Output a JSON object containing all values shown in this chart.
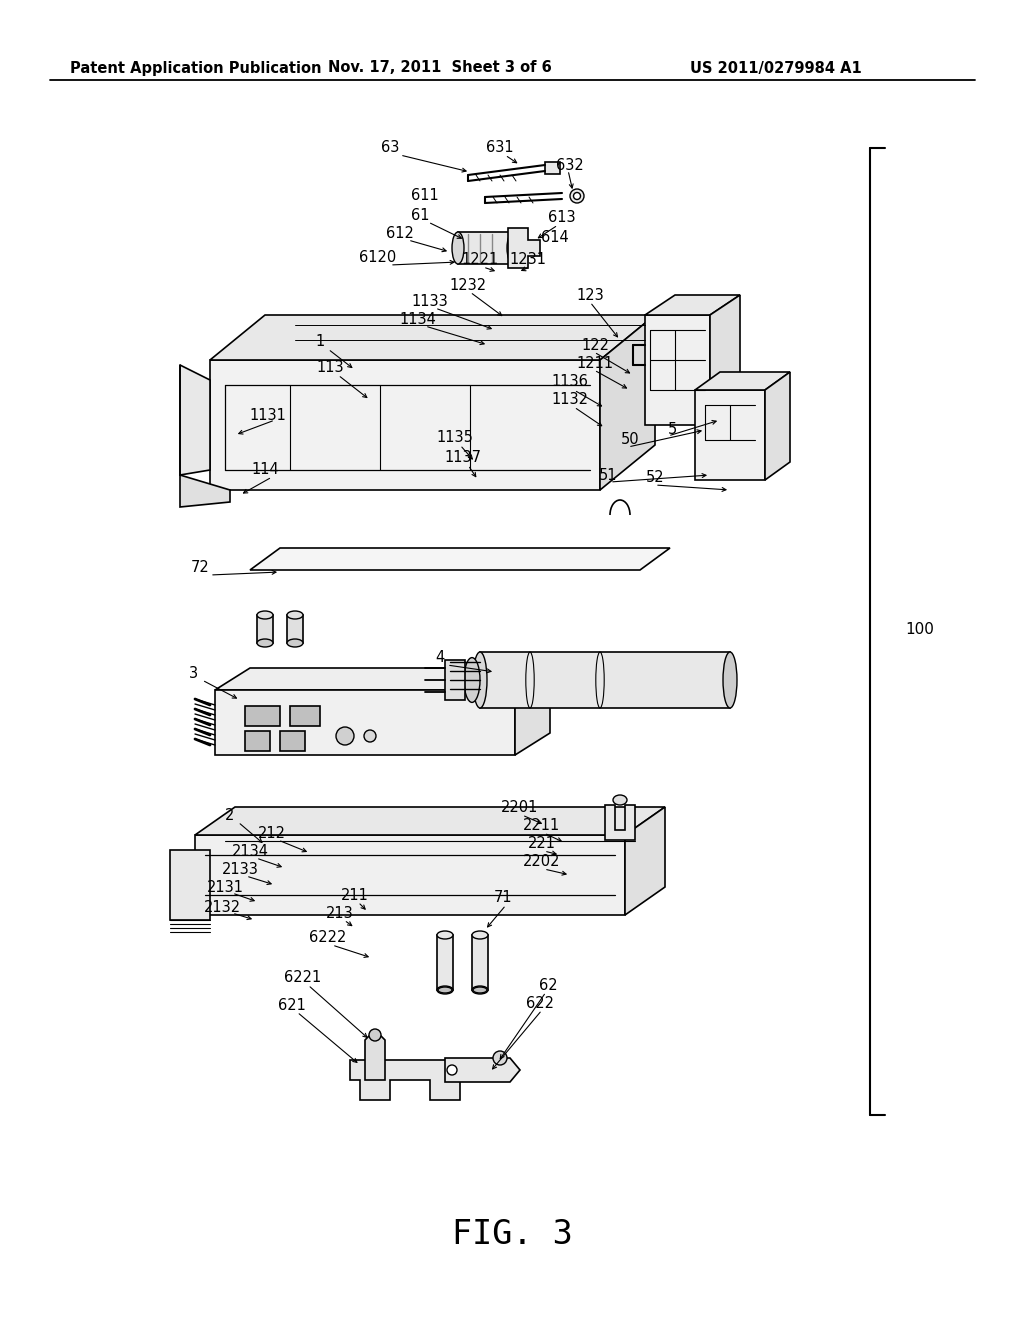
{
  "bg_color": "#ffffff",
  "line_color": "#000000",
  "header_left": "Patent Application Publication",
  "header_center": "Nov. 17, 2011  Sheet 3 of 6",
  "header_right": "US 2011/0279984 A1",
  "figure_label": "FIG. 3",
  "fig_label_font_size": 24,
  "header_font_size": 10.5,
  "label_font_size": 10.5
}
